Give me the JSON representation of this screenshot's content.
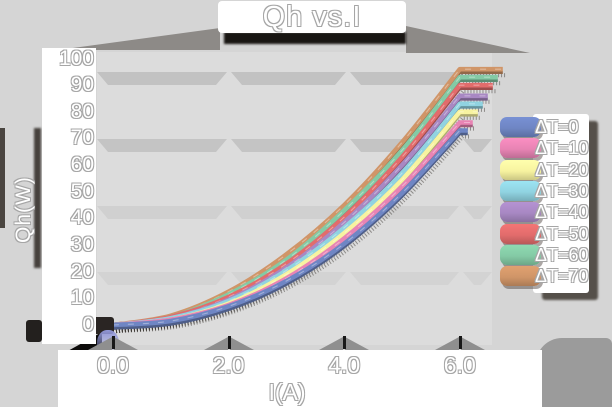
{
  "title": "Qh vs.I",
  "y_axis": {
    "title": "Qh(W)",
    "labels": [
      "100",
      "90",
      "80",
      "70",
      "60",
      "50",
      "40",
      "30",
      "20",
      "10",
      "0"
    ]
  },
  "x_axis": {
    "title": "I(A)",
    "labels": [
      "0.0",
      "2.0",
      "4.0",
      "6.0"
    ]
  },
  "legend": {
    "items": [
      {
        "label": "ΔT=0",
        "color": "#6f86c4"
      },
      {
        "label": "ΔT=10",
        "color": "#e884b4"
      },
      {
        "label": "ΔT=20",
        "color": "#f7f3a0"
      },
      {
        "label": "ΔT=30",
        "color": "#90d3e1"
      },
      {
        "label": "ΔT=40",
        "color": "#a888c3"
      },
      {
        "label": "ΔT=50",
        "color": "#e26c6c"
      },
      {
        "label": "ΔT=60",
        "color": "#84caa5"
      },
      {
        "label": "ΔT=70",
        "color": "#d09568"
      }
    ]
  },
  "chart_data": {
    "type": "line",
    "title": "Qh vs.I",
    "xlabel": "I(A)",
    "ylabel": "Qh(W)",
    "xlim": [
      0,
      6
    ],
    "ylim": [
      0,
      100
    ],
    "x_ticks": [
      0.0,
      2.0,
      4.0,
      6.0
    ],
    "y_ticks": [
      0,
      10,
      20,
      30,
      40,
      50,
      60,
      70,
      80,
      90,
      100
    ],
    "grid": "horizontal-ribbons",
    "legend_position": "right",
    "x": [
      0,
      1,
      2,
      3,
      4,
      5,
      6
    ],
    "series": [
      {
        "name": "ΔT=0",
        "color": "#6f86c4",
        "values": [
          0,
          1.5,
          7,
          16.5,
          30.5,
          49.5,
          73
        ]
      },
      {
        "name": "ΔT=10",
        "color": "#e884b4",
        "values": [
          0,
          2,
          7.5,
          17.5,
          32.5,
          52,
          76
        ]
      },
      {
        "name": "ΔT=20",
        "color": "#f7f3a0",
        "values": [
          0,
          2,
          8,
          19,
          34.5,
          54.5,
          80
        ]
      },
      {
        "name": "ΔT=30",
        "color": "#90d3e1",
        "values": [
          0,
          2.5,
          9,
          20.5,
          36.5,
          57,
          83
        ]
      },
      {
        "name": "ΔT=40",
        "color": "#a888c3",
        "values": [
          0,
          2.5,
          9.5,
          21.5,
          38.5,
          60,
          86
        ]
      },
      {
        "name": "ΔT=50",
        "color": "#e26c6c",
        "values": [
          0,
          3,
          10.5,
          23,
          40.5,
          63,
          90
        ]
      },
      {
        "name": "ΔT=60",
        "color": "#84caa5",
        "values": [
          0,
          3,
          11.5,
          24.5,
          43,
          65.5,
          93
        ]
      },
      {
        "name": "ΔT=70",
        "color": "#d09568",
        "values": [
          0,
          3.5,
          12.5,
          26.5,
          45,
          68.5,
          96
        ]
      }
    ]
  }
}
